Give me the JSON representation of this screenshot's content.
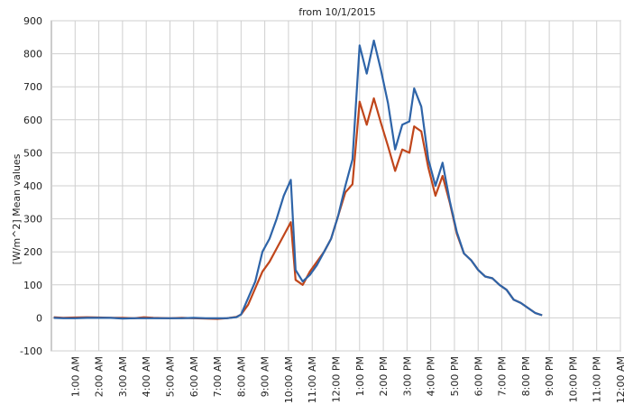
{
  "chart_data": {
    "type": "line",
    "title": "from 10/1/2015",
    "ylabel": "[W/m^2] Mean values",
    "xlabel": "",
    "ylim": [
      -100,
      900
    ],
    "yticks": [
      -100,
      0,
      100,
      200,
      300,
      400,
      500,
      600,
      700,
      800,
      900
    ],
    "xlim_hours": [
      0,
      24
    ],
    "xtick_hours": [
      1,
      2,
      3,
      4,
      5,
      6,
      7,
      8,
      9,
      10,
      11,
      12,
      13,
      14,
      15,
      16,
      17,
      18,
      19,
      20,
      21,
      22,
      23,
      24
    ],
    "xtick_labels": [
      "1:00 AM",
      "2:00 AM",
      "3:00 AM",
      "4:00 AM",
      "5:00 AM",
      "6:00 AM",
      "7:00 AM",
      "8:00 AM",
      "9:00 AM",
      "10:00 AM",
      "11:00 AM",
      "12:00 PM",
      "1:00 PM",
      "2:00 PM",
      "3:00 PM",
      "4:00 PM",
      "5:00 PM",
      "6:00 PM",
      "7:00 PM",
      "8:00 PM",
      "9:00 PM",
      "10:00 PM",
      "11:00 PM",
      "12:00 AM"
    ],
    "grid": true,
    "legend": "none",
    "series": [
      {
        "color": "#c0461b",
        "points": [
          [
            0.1,
            2
          ],
          [
            0.5,
            0
          ],
          [
            1.0,
            1
          ],
          [
            1.5,
            2
          ],
          [
            2.0,
            1
          ],
          [
            2.5,
            0
          ],
          [
            3.0,
            0
          ],
          [
            3.5,
            -1
          ],
          [
            3.9,
            2
          ],
          [
            4.3,
            0
          ],
          [
            5.0,
            -1
          ],
          [
            5.5,
            0
          ],
          [
            6.0,
            -1
          ],
          [
            6.5,
            -2
          ],
          [
            7.0,
            -3
          ],
          [
            7.4,
            -1
          ],
          [
            7.8,
            3
          ],
          [
            8.0,
            10
          ],
          [
            8.3,
            40
          ],
          [
            8.6,
            90
          ],
          [
            8.9,
            140
          ],
          [
            9.2,
            170
          ],
          [
            9.5,
            210
          ],
          [
            9.8,
            250
          ],
          [
            10.1,
            290
          ],
          [
            10.3,
            115
          ],
          [
            10.6,
            100
          ],
          [
            10.9,
            140
          ],
          [
            11.2,
            170
          ],
          [
            11.5,
            200
          ],
          [
            11.8,
            240
          ],
          [
            12.1,
            310
          ],
          [
            12.4,
            380
          ],
          [
            12.7,
            405
          ],
          [
            13.0,
            655
          ],
          [
            13.3,
            585
          ],
          [
            13.6,
            665
          ],
          [
            13.9,
            590
          ],
          [
            14.2,
            520
          ],
          [
            14.5,
            445
          ],
          [
            14.8,
            510
          ],
          [
            15.1,
            500
          ],
          [
            15.3,
            580
          ],
          [
            15.6,
            565
          ],
          [
            15.9,
            455
          ],
          [
            16.2,
            370
          ],
          [
            16.5,
            430
          ],
          [
            16.8,
            350
          ],
          [
            17.1,
            255
          ],
          [
            17.4,
            195
          ],
          [
            17.7,
            175
          ],
          [
            18.0,
            145
          ],
          [
            18.3,
            125
          ],
          [
            18.6,
            120
          ],
          [
            18.9,
            100
          ],
          [
            19.2,
            85
          ],
          [
            19.5,
            55
          ],
          [
            19.8,
            45
          ],
          [
            20.1,
            30
          ],
          [
            20.4,
            15
          ],
          [
            20.7,
            8
          ]
        ]
      },
      {
        "color": "#2e64a8",
        "points": [
          [
            0.1,
            0
          ],
          [
            0.5,
            -1
          ],
          [
            1.0,
            -1
          ],
          [
            1.5,
            0
          ],
          [
            2.0,
            0
          ],
          [
            2.5,
            0
          ],
          [
            3.0,
            -2
          ],
          [
            3.5,
            -1
          ],
          [
            3.9,
            -1
          ],
          [
            4.3,
            -1
          ],
          [
            5.0,
            -1
          ],
          [
            5.5,
            -1
          ],
          [
            6.0,
            0
          ],
          [
            6.5,
            -1
          ],
          [
            7.0,
            -1
          ],
          [
            7.4,
            -1
          ],
          [
            7.8,
            2
          ],
          [
            8.0,
            10
          ],
          [
            8.3,
            60
          ],
          [
            8.6,
            110
          ],
          [
            8.9,
            200
          ],
          [
            9.2,
            240
          ],
          [
            9.5,
            300
          ],
          [
            9.8,
            370
          ],
          [
            10.1,
            418
          ],
          [
            10.3,
            145
          ],
          [
            10.6,
            110
          ],
          [
            10.9,
            130
          ],
          [
            11.2,
            160
          ],
          [
            11.5,
            200
          ],
          [
            11.8,
            240
          ],
          [
            12.1,
            310
          ],
          [
            12.4,
            400
          ],
          [
            12.7,
            480
          ],
          [
            13.0,
            825
          ],
          [
            13.3,
            740
          ],
          [
            13.6,
            840
          ],
          [
            13.9,
            750
          ],
          [
            14.2,
            650
          ],
          [
            14.5,
            510
          ],
          [
            14.8,
            585
          ],
          [
            15.1,
            595
          ],
          [
            15.3,
            695
          ],
          [
            15.6,
            640
          ],
          [
            15.9,
            480
          ],
          [
            16.2,
            400
          ],
          [
            16.5,
            470
          ],
          [
            16.8,
            355
          ],
          [
            17.1,
            260
          ],
          [
            17.4,
            195
          ],
          [
            17.7,
            175
          ],
          [
            18.0,
            145
          ],
          [
            18.3,
            125
          ],
          [
            18.6,
            120
          ],
          [
            18.9,
            100
          ],
          [
            19.2,
            85
          ],
          [
            19.5,
            55
          ],
          [
            19.8,
            45
          ],
          [
            20.1,
            30
          ],
          [
            20.4,
            15
          ],
          [
            20.7,
            8
          ]
        ]
      }
    ]
  }
}
